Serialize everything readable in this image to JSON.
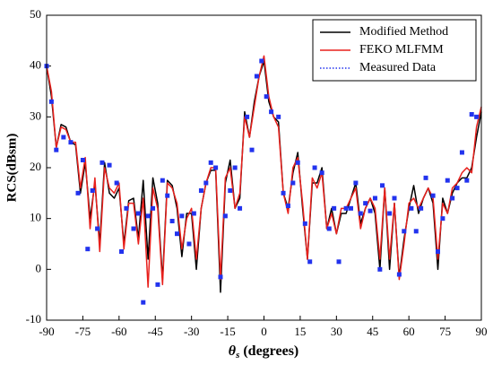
{
  "chart_data": {
    "type": "line",
    "x_label": {
      "symbol": "θ",
      "sub": "s",
      "text": " (degrees)"
    },
    "y_label": "RCS(dBsm)",
    "xlim": [
      -90,
      90
    ],
    "xticks": [
      -90,
      -75,
      -60,
      -45,
      -30,
      -15,
      0,
      15,
      30,
      45,
      60,
      75,
      90
    ],
    "ylim": [
      -10,
      50
    ],
    "yticks": [
      -10,
      0,
      10,
      20,
      30,
      40,
      50
    ],
    "legend": "upper right",
    "series": [
      {
        "name": "Modified Method",
        "color": "#000000",
        "style": "line",
        "x": [
          -90,
          -88,
          -86,
          -84,
          -82,
          -80,
          -78,
          -76,
          -74,
          -72,
          -70,
          -68,
          -66,
          -64,
          -62,
          -60,
          -58,
          -56,
          -54,
          -52,
          -50,
          -48,
          -46,
          -44,
          -42,
          -40,
          -38,
          -36,
          -34,
          -32,
          -30,
          -28,
          -26,
          -24,
          -22,
          -20,
          -18,
          -16,
          -14,
          -12,
          -10,
          -8,
          -6,
          -4,
          -2,
          0,
          2,
          4,
          6,
          8,
          10,
          12,
          14,
          16,
          18,
          20,
          22,
          24,
          26,
          28,
          30,
          32,
          34,
          36,
          38,
          40,
          42,
          44,
          46,
          48,
          50,
          52,
          54,
          56,
          58,
          60,
          62,
          64,
          66,
          68,
          70,
          72,
          74,
          76,
          78,
          80,
          82,
          84,
          86,
          88,
          90
        ],
        "values": [
          40,
          34,
          24,
          28.5,
          28,
          25,
          24.5,
          15,
          21,
          10,
          17,
          5,
          21,
          15,
          14,
          16,
          5,
          13.5,
          14,
          6,
          17.5,
          2,
          18,
          13,
          -2,
          17.5,
          16.5,
          12,
          2.5,
          11,
          11,
          0,
          12,
          17,
          19.5,
          19.5,
          -4.5,
          17,
          21.5,
          12,
          14,
          31,
          26,
          33,
          38,
          41,
          33,
          30,
          29,
          15,
          12,
          19,
          23,
          12,
          2,
          17,
          17,
          20,
          8,
          12,
          7,
          11,
          11,
          14,
          17,
          9,
          12,
          14,
          11,
          0,
          16,
          0,
          13,
          -1.5,
          6,
          12,
          16.5,
          11,
          14,
          16,
          13,
          0,
          14,
          11,
          15,
          17,
          18,
          18,
          20,
          26,
          31
        ]
      },
      {
        "name": "FEKO MLFMM",
        "color": "#e8201c",
        "style": "line",
        "x": [
          -90,
          -88,
          -86,
          -84,
          -82,
          -80,
          -78,
          -76,
          -74,
          -72,
          -70,
          -68,
          -66,
          -64,
          -62,
          -60,
          -58,
          -56,
          -54,
          -52,
          -50,
          -48,
          -46,
          -44,
          -42,
          -40,
          -38,
          -36,
          -34,
          -32,
          -30,
          -28,
          -26,
          -24,
          -22,
          -20,
          -18,
          -16,
          -14,
          -12,
          -10,
          -8,
          -6,
          -4,
          -2,
          0,
          2,
          4,
          6,
          8,
          10,
          12,
          14,
          16,
          18,
          20,
          22,
          24,
          26,
          28,
          30,
          32,
          34,
          36,
          38,
          40,
          42,
          44,
          46,
          48,
          50,
          52,
          54,
          56,
          58,
          60,
          62,
          64,
          66,
          68,
          70,
          72,
          74,
          76,
          78,
          80,
          82,
          84,
          86,
          88,
          90
        ],
        "values": [
          40,
          35,
          24,
          28,
          27.5,
          25,
          25,
          16,
          22,
          8,
          18,
          3.5,
          20,
          16,
          15,
          17,
          4,
          13,
          13,
          5,
          14,
          -3.5,
          16,
          12,
          -3,
          17,
          16,
          13,
          4,
          10,
          12,
          2,
          12,
          17,
          20,
          20,
          -2,
          18,
          20,
          12,
          15,
          30,
          26,
          32,
          38,
          42,
          34,
          30,
          28,
          15,
          11,
          20,
          22,
          13,
          2,
          18,
          16,
          19,
          8,
          11,
          7,
          12,
          12,
          14,
          16,
          8,
          12,
          14,
          12,
          2,
          16,
          2,
          13,
          -2,
          5,
          13,
          14,
          12,
          14,
          16,
          14,
          2,
          13,
          11,
          16,
          17,
          19,
          20,
          19,
          28,
          32
        ]
      },
      {
        "name": "Measured Data",
        "color": "#2233ee",
        "style": "markers",
        "x": [
          -90,
          -88,
          -86,
          -83,
          -80,
          -77,
          -75,
          -73,
          -71,
          -69,
          -67,
          -64,
          -61,
          -59,
          -57,
          -54,
          -52,
          -50,
          -48,
          -46,
          -44,
          -42,
          -40,
          -38,
          -36,
          -34,
          -31,
          -29,
          -26,
          -24,
          -22,
          -20,
          -18,
          -16,
          -14,
          -12,
          -10,
          -7,
          -5,
          -3,
          -1,
          1,
          3,
          6,
          8,
          10,
          12,
          14,
          17,
          19,
          21,
          24,
          27,
          29,
          31,
          34,
          36,
          38,
          40,
          42,
          44,
          46,
          48,
          49,
          52,
          54,
          56,
          58,
          61,
          63,
          65,
          67,
          70,
          72,
          74,
          76,
          78,
          80,
          82,
          84,
          86,
          88
        ],
        "values": [
          40,
          33,
          23.5,
          26,
          25,
          15,
          21.5,
          4,
          15.5,
          8,
          21,
          20.5,
          17,
          3.5,
          12,
          8,
          11,
          -6.5,
          10.5,
          12,
          -3,
          17.5,
          14.5,
          9.5,
          7,
          10.5,
          5,
          11,
          15.5,
          17,
          21,
          20,
          -1.5,
          10.5,
          15.5,
          20,
          12,
          30,
          23.5,
          38,
          41,
          34,
          31,
          30,
          15,
          12.5,
          17,
          21,
          9,
          1.5,
          20,
          19,
          8,
          12,
          1.5,
          12,
          12,
          17,
          11,
          13,
          11.5,
          14,
          0,
          16.5,
          11,
          14,
          -1,
          7.5,
          12,
          7.5,
          12,
          18,
          14.5,
          3.5,
          10,
          17.5,
          14,
          16,
          23,
          17.5,
          30.5,
          30
        ]
      }
    ]
  }
}
